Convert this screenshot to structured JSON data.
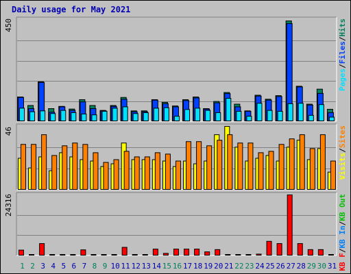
{
  "title": "Daily usage for May 2021",
  "colors": {
    "hits": "#00805c",
    "files": "#0040ff",
    "pages": "#00e0ff",
    "visits": "#ffff00",
    "sites": "#ff8000",
    "kbytes": "#ff0000",
    "kb_in": "#0080ff",
    "kb_out": "#00c000",
    "weekend_label": "#00805c",
    "weekday_label": "#0000b0",
    "title": "#0000b0"
  },
  "chart_data": [
    {
      "type": "bar",
      "panel": "top",
      "ytick": "450",
      "ylim": [
        0,
        450
      ],
      "legend": [
        {
          "text": "Pages",
          "color": "#00e0ff"
        },
        {
          "text": "/",
          "color": "#000000"
        },
        {
          "text": "Files",
          "color": "#0040ff"
        },
        {
          "text": "/",
          "color": "#000000"
        },
        {
          "text": "Hits",
          "color": "#00805c"
        }
      ],
      "categories": [
        "1",
        "2",
        "3",
        "4",
        "5",
        "6",
        "7",
        "8",
        "9",
        "10",
        "11",
        "12",
        "13",
        "14",
        "15",
        "16",
        "17",
        "18",
        "19",
        "20",
        "21",
        "22",
        "23",
        "24",
        "25",
        "26",
        "27",
        "28",
        "29",
        "30",
        "31"
      ],
      "series": [
        {
          "name": "Hits",
          "values": [
            110,
            72,
            178,
            58,
            68,
            56,
            98,
            72,
            50,
            72,
            108,
            48,
            48,
            98,
            86,
            70,
            98,
            110,
            58,
            90,
            130,
            78,
            48,
            118,
            100,
            116,
            450,
            158,
            78,
            145,
            55
          ]
        },
        {
          "name": "Files",
          "values": [
            108,
            58,
            175,
            42,
            66,
            50,
            88,
            58,
            48,
            68,
            100,
            44,
            44,
            96,
            80,
            66,
            94,
            106,
            56,
            84,
            125,
            66,
            46,
            114,
            96,
            112,
            438,
            155,
            74,
            126,
            40
          ]
        },
        {
          "name": "Pages",
          "values": [
            60,
            44,
            48,
            36,
            50,
            40,
            34,
            30,
            46,
            60,
            66,
            36,
            40,
            60,
            62,
            24,
            54,
            60,
            50,
            40,
            104,
            46,
            24,
            82,
            50,
            46,
            80,
            82,
            28,
            76,
            20
          ]
        }
      ]
    },
    {
      "type": "bar",
      "panel": "middle",
      "ytick": "46",
      "ylim": [
        0,
        46
      ],
      "legend": [
        {
          "text": "Visits",
          "color": "#ffff00"
        },
        {
          "text": "/",
          "color": "#000000"
        },
        {
          "text": "Sites",
          "color": "#ff8000"
        }
      ],
      "categories": [
        "1",
        "2",
        "3",
        "4",
        "5",
        "6",
        "7",
        "8",
        "9",
        "10",
        "11",
        "12",
        "13",
        "14",
        "15",
        "16",
        "17",
        "18",
        "19",
        "20",
        "21",
        "22",
        "23",
        "24",
        "25",
        "26",
        "27",
        "28",
        "29",
        "30",
        "31"
      ],
      "series": [
        {
          "name": "Visits",
          "values": [
            23,
            16,
            24,
            14,
            27,
            24,
            22,
            21,
            17,
            19,
            34,
            22,
            22,
            22,
            21,
            17,
            21,
            19,
            21,
            40,
            46,
            31,
            21,
            23,
            25,
            21,
            31,
            36,
            22,
            30,
            13
          ]
        },
        {
          "name": "Sites",
          "values": [
            33,
            33,
            40,
            25,
            32,
            34,
            33,
            27,
            20,
            22,
            28,
            24,
            24,
            27,
            26,
            21,
            35,
            35,
            32,
            36,
            40,
            34,
            34,
            27,
            28,
            33,
            37,
            40,
            30,
            40,
            21
          ]
        }
      ]
    },
    {
      "type": "bar",
      "panel": "bottom",
      "ytick": "24316",
      "ylim": [
        0,
        24316
      ],
      "legend": [
        {
          "text": "KB F",
          "color": "#ff0000"
        },
        {
          "text": "/",
          "color": "#000000"
        },
        {
          "text": "KB In",
          "color": "#0080ff"
        },
        {
          "text": "/",
          "color": "#000000"
        },
        {
          "text": "KB Out",
          "color": "#00c000"
        }
      ],
      "categories": [
        "1",
        "2",
        "3",
        "4",
        "5",
        "6",
        "7",
        "8",
        "9",
        "10",
        "11",
        "12",
        "13",
        "14",
        "15",
        "16",
        "17",
        "18",
        "19",
        "20",
        "21",
        "22",
        "23",
        "24",
        "25",
        "26",
        "27",
        "28",
        "29",
        "30",
        "31"
      ],
      "series": [
        {
          "name": "KB F",
          "values": [
            2300,
            400,
            4900,
            500,
            400,
            500,
            2400,
            500,
            500,
            500,
            3400,
            500,
            500,
            2700,
            1000,
            2700,
            2700,
            2700,
            1600,
            2500,
            500,
            500,
            500,
            700,
            5800,
            4900,
            24316,
            4900,
            2500,
            2500,
            500
          ]
        }
      ]
    }
  ],
  "x_labels": [
    {
      "text": "1",
      "weekend": true
    },
    {
      "text": "2",
      "weekend": true
    },
    {
      "text": "3",
      "weekend": false
    },
    {
      "text": "4",
      "weekend": false
    },
    {
      "text": "5",
      "weekend": false
    },
    {
      "text": "6",
      "weekend": false
    },
    {
      "text": "7",
      "weekend": false
    },
    {
      "text": "8",
      "weekend": true
    },
    {
      "text": "9",
      "weekend": true
    },
    {
      "text": "10",
      "weekend": false
    },
    {
      "text": "11",
      "weekend": false
    },
    {
      "text": "12",
      "weekend": false
    },
    {
      "text": "13",
      "weekend": false
    },
    {
      "text": "14",
      "weekend": false
    },
    {
      "text": "15",
      "weekend": true
    },
    {
      "text": "16",
      "weekend": true
    },
    {
      "text": "17",
      "weekend": false
    },
    {
      "text": "18",
      "weekend": false
    },
    {
      "text": "19",
      "weekend": false
    },
    {
      "text": "20",
      "weekend": false
    },
    {
      "text": "21",
      "weekend": false
    },
    {
      "text": "22",
      "weekend": true
    },
    {
      "text": "23",
      "weekend": true
    },
    {
      "text": "24",
      "weekend": false
    },
    {
      "text": "25",
      "weekend": false
    },
    {
      "text": "26",
      "weekend": false
    },
    {
      "text": "27",
      "weekend": false
    },
    {
      "text": "28",
      "weekend": false
    },
    {
      "text": "29",
      "weekend": true
    },
    {
      "text": "30",
      "weekend": true
    },
    {
      "text": "31",
      "weekend": false
    }
  ]
}
